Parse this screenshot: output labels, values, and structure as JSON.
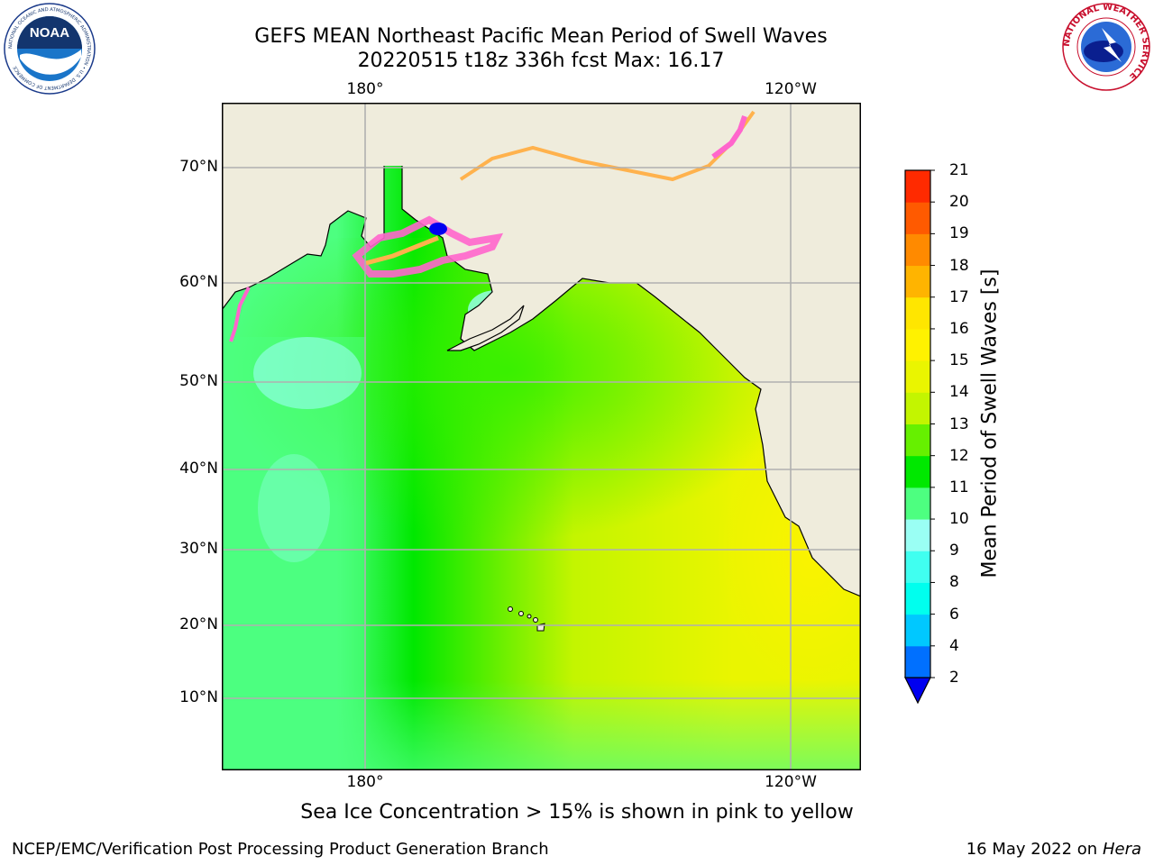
{
  "header": {
    "title_line1": "GEFS MEAN Northeast Pacific Mean Period of Swell Waves",
    "title_line2": "20220515 t18z 336h fcst   Max: 16.17"
  },
  "map": {
    "lon_ticks_top": [
      "180°",
      "120°W"
    ],
    "lon_ticks_bottom": [
      "180°",
      "120°W"
    ],
    "lat_ticks": [
      "70°N",
      "60°N",
      "50°N",
      "40°N",
      "30°N",
      "20°N",
      "10°N"
    ],
    "colors": {
      "land": "#efecdc",
      "grid": "#b0b0b0",
      "coast": "#000000",
      "ice_pink": "#ff66cc",
      "ice_orange": "#ffb24d"
    }
  },
  "colorbar": {
    "label": "Mean Period of Swell Waves [s]",
    "tick_labels": [
      "2",
      "4",
      "6",
      "8",
      "9",
      "10",
      "11",
      "12",
      "13",
      "14",
      "15",
      "16",
      "17",
      "18",
      "19",
      "20",
      "21"
    ],
    "colors": [
      "#0000f0",
      "#0070ff",
      "#00c8ff",
      "#00ffee",
      "#40fff0",
      "#9afff4",
      "#4dff80",
      "#00e800",
      "#66f000",
      "#c3f500",
      "#eaf500",
      "#fff200",
      "#ffe600",
      "#ffb400",
      "#ff8a00",
      "#ff5a00",
      "#ff2a00",
      "#f00000"
    ],
    "extend": "min"
  },
  "caption": "Sea Ice Concentration > 15% is shown in pink to yellow",
  "footer": {
    "credit": "NCEP/EMC/Verification Post Processing Product Generation Branch",
    "date": "16 May 2022 on",
    "host": "Hera"
  },
  "logos": {
    "noaa_text": "NOAA",
    "noaa_ring_text": "NATIONAL OCEANIC AND ATMOSPHERIC ADMINISTRATION • U.S. DEPARTMENT OF COMMERCE",
    "nws_ring_text": "NATIONAL WEATHER SERVICE"
  }
}
